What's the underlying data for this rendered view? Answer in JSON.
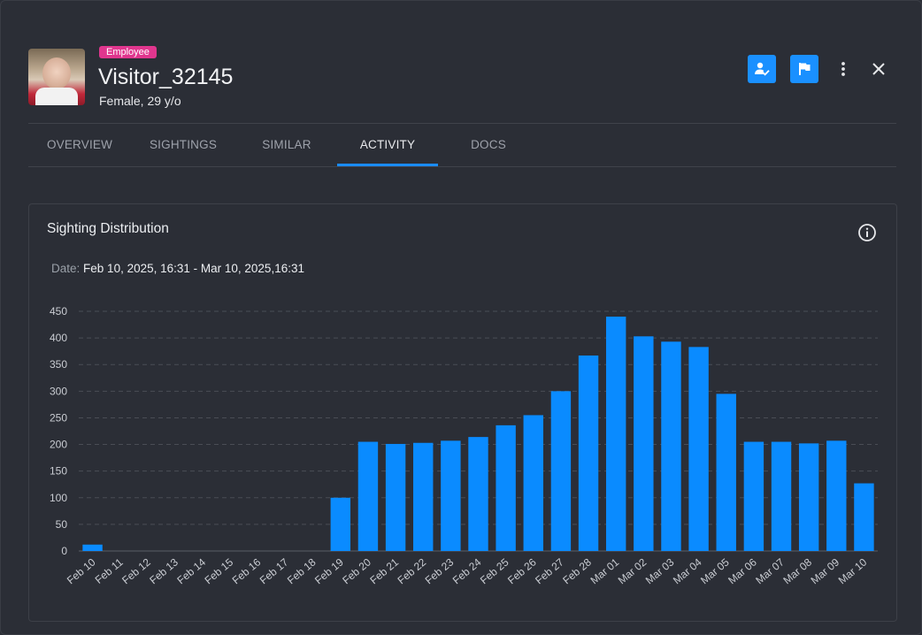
{
  "header": {
    "badge": "Employee",
    "title": "Visitor_32145",
    "subtitle": "Female, 29 y/o"
  },
  "actions": [
    {
      "name": "verify-person-button",
      "icon": "person-check-icon"
    },
    {
      "name": "flag-button",
      "icon": "flag-icon"
    },
    {
      "name": "more-options-button",
      "icon": "vertical-dots-icon"
    },
    {
      "name": "close-button",
      "icon": "close-icon"
    }
  ],
  "tabs": [
    {
      "label": "OVERVIEW",
      "active": false
    },
    {
      "label": "SIGHTINGS",
      "active": false
    },
    {
      "label": "SIMILAR",
      "active": false
    },
    {
      "label": "ACTIVITY",
      "active": true
    },
    {
      "label": "DOCS",
      "active": false
    }
  ],
  "card": {
    "title": "Sighting Distribution",
    "date_label": "Date:",
    "date_value": "Feb 10, 2025, 16:31 - Mar 10, 2025,16:31"
  },
  "colors": {
    "accent": "#1a8cff",
    "bar": "#0a8bff",
    "badge": "#e0368e"
  },
  "chart_data": {
    "type": "bar",
    "title": "",
    "xlabel": "",
    "ylabel": "",
    "ylim": [
      0,
      450
    ],
    "yticks": [
      0,
      50,
      100,
      150,
      200,
      250,
      300,
      350,
      400,
      450
    ],
    "grid": true,
    "categories": [
      "Feb 10",
      "Feb 11",
      "Feb 12",
      "Feb 13",
      "Feb 14",
      "Feb 15",
      "Feb 16",
      "Feb 17",
      "Feb 18",
      "Feb 19",
      "Feb 20",
      "Feb 21",
      "Feb 22",
      "Feb 23",
      "Feb 24",
      "Feb 25",
      "Feb 26",
      "Feb 27",
      "Feb 28",
      "Mar 01",
      "Mar 02",
      "Mar 03",
      "Mar 04",
      "Mar 05",
      "Mar 06",
      "Mar 07",
      "Mar 08",
      "Mar 09",
      "Mar 10"
    ],
    "values": [
      12,
      0,
      0,
      0,
      0,
      0,
      0,
      0,
      0,
      100,
      205,
      201,
      203,
      207,
      214,
      236,
      255,
      300,
      367,
      440,
      403,
      393,
      383,
      295,
      205,
      205,
      202,
      207,
      127
    ]
  }
}
